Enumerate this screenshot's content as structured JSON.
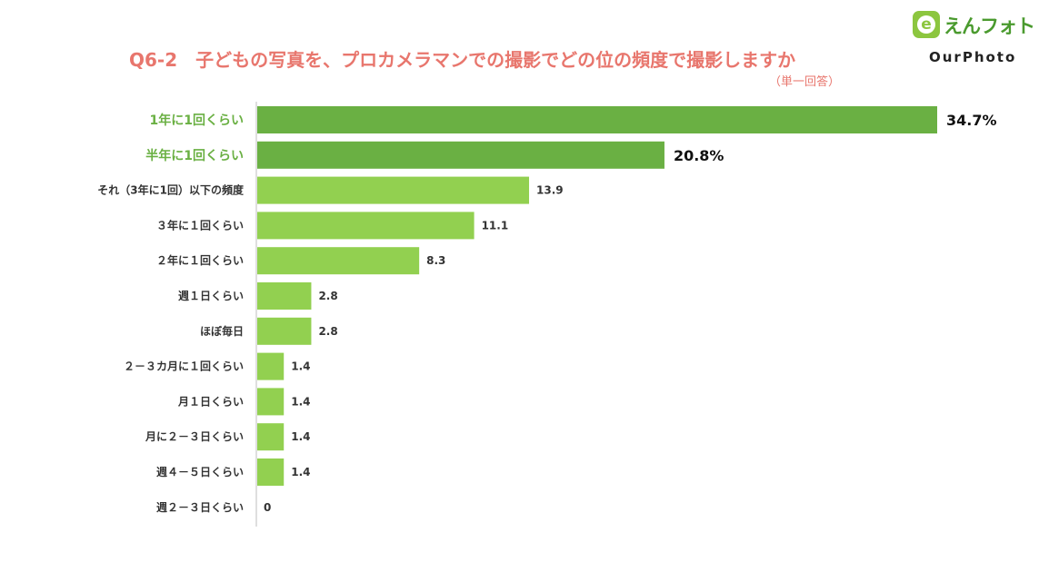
{
  "title": "Q6-2　子どもの写真を、プロカメラマンでの撮影でどの位の頻度で撮影しますか",
  "subtitle": "（単一回答）",
  "logo": {
    "badge_letter": "e",
    "name_jp": "えんフォト",
    "name_en": "OurPhoto"
  },
  "colors": {
    "title": "#e8766d",
    "highlight_bar": "#6ab043",
    "normal_bar": "#92d050",
    "highlight_label": "#6ab043",
    "axis": "#bfbfbf",
    "text": "#333333"
  },
  "chart_data": {
    "type": "bar",
    "orientation": "horizontal",
    "categories": [
      "1年に1回くらい",
      "半年に1回くらい",
      "それ（3年に1回）以下の頻度",
      "３年に１回くらい",
      "２年に１回くらい",
      "週１日くらい",
      "ほぼ毎日",
      "２－３カ月に１回くらい",
      "月１日くらい",
      "月に２－３日くらい",
      "週４－５日くらい",
      "週２－３日くらい"
    ],
    "values": [
      34.7,
      20.8,
      13.9,
      11.1,
      8.3,
      2.8,
      2.8,
      1.4,
      1.4,
      1.4,
      1.4,
      0
    ],
    "value_labels": [
      "34.7%",
      "20.8%",
      "13.9",
      "11.1",
      "8.3",
      "2.8",
      "2.8",
      "1.4",
      "1.4",
      "1.4",
      "1.4",
      "0"
    ],
    "highlighted": [
      true,
      true,
      false,
      false,
      false,
      false,
      false,
      false,
      false,
      false,
      false,
      false
    ],
    "xlim": [
      0,
      34.7
    ],
    "grid": false
  }
}
